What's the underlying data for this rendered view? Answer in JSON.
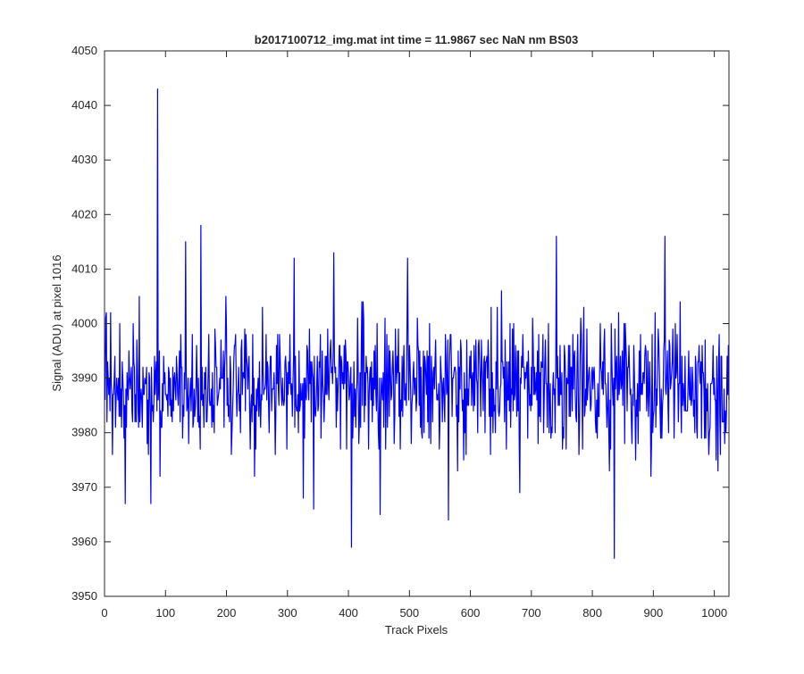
{
  "chart_data": {
    "type": "line",
    "title": "b2017100712_img.mat int time = 11.9867 sec  NaN nm BS03",
    "xlabel": "Track Pixels",
    "ylabel": "Signal (ADU) at pixel 1016",
    "xlim": [
      0,
      1024
    ],
    "ylim": [
      3950,
      4050
    ],
    "xticks": [
      0,
      100,
      200,
      300,
      400,
      500,
      600,
      700,
      800,
      900,
      1000
    ],
    "yticks": [
      3950,
      3960,
      3970,
      3980,
      3990,
      4000,
      4010,
      4020,
      4030,
      4040,
      4050
    ],
    "grid": false,
    "legend": "none",
    "series_color": "#0000ff",
    "noise": {
      "center": 3989,
      "spread": 6,
      "length": 1024,
      "seed": 2017100712
    },
    "x": [
      33,
      75,
      86,
      90,
      132,
      157,
      245,
      310,
      325,
      342,
      375,
      404,
      451,
      496,
      563,
      632,
      680,
      740,
      835,
      895,
      918,
      1005,
      1016
    ],
    "y": [
      3967,
      3967,
      4043,
      3972,
      4015,
      4018,
      3972,
      4012,
      3968,
      3966,
      4013,
      3959,
      3965,
      4012,
      3964,
      3976,
      3969,
      4016,
      3957,
      3972,
      4016,
      3973,
      3978
    ]
  }
}
